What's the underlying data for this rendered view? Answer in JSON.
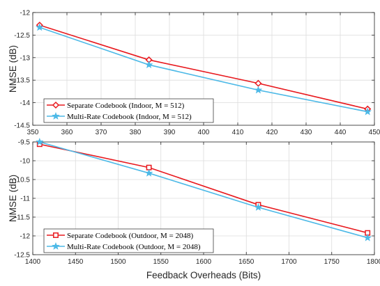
{
  "chart_data": [
    {
      "type": "line",
      "xlabel": "",
      "ylabel": "NMSE (dB)",
      "xlim": [
        350,
        450
      ],
      "ylim": [
        -14.5,
        -12
      ],
      "xticks": [
        350,
        360,
        370,
        380,
        390,
        400,
        410,
        420,
        430,
        440,
        450
      ],
      "yticks": [
        -12,
        -12.5,
        -13,
        -13.5,
        -14,
        -14.5
      ],
      "xtick_labels": [
        "350",
        "360",
        "370",
        "380",
        "390",
        "400",
        "410",
        "420",
        "430",
        "440",
        "450"
      ],
      "ytick_labels": [
        "-12",
        "-12.5",
        "-13",
        "-13.5",
        "-14",
        "-14.5"
      ],
      "grid": true,
      "legend_position": "bottom-left",
      "series": [
        {
          "name": "Separate Codebook (Indoor, M = 512)",
          "color": "#e8191e",
          "marker": "diamond",
          "x": [
            352,
            384,
            416,
            448
          ],
          "y": [
            -12.28,
            -13.05,
            -13.57,
            -14.14
          ]
        },
        {
          "name": "Multi-Rate Codebook (Indoor, M = 512)",
          "color": "#4cb9e7",
          "marker": "star",
          "x": [
            352,
            384,
            416,
            448
          ],
          "y": [
            -12.33,
            -13.16,
            -13.72,
            -14.2
          ]
        }
      ]
    },
    {
      "type": "line",
      "xlabel": "Feedback Overheads (Bits)",
      "ylabel": "NMSE (dB)",
      "xlim": [
        1400,
        1800
      ],
      "ylim": [
        -12.5,
        -9.5
      ],
      "xticks": [
        1400,
        1450,
        1500,
        1550,
        1600,
        1650,
        1700,
        1750,
        1800
      ],
      "yticks": [
        -9.5,
        -10,
        -10.5,
        -11,
        -11.5,
        -12,
        -12.5
      ],
      "xtick_labels": [
        "1400",
        "1450",
        "1500",
        "1550",
        "1600",
        "1650",
        "1700",
        "1750",
        "1800"
      ],
      "ytick_labels": [
        "-9.5",
        "-10",
        "-10.5",
        "-11",
        "-11.5",
        "-12",
        "-12.5"
      ],
      "grid": true,
      "legend_position": "bottom-left",
      "series": [
        {
          "name": "Separate Codebook (Outdoor, M = 2048)",
          "color": "#e8191e",
          "marker": "square",
          "x": [
            1408,
            1536,
            1664,
            1792
          ],
          "y": [
            -9.56,
            -10.18,
            -11.17,
            -11.92
          ]
        },
        {
          "name": "Multi-Rate Codebook (Outdoor, M = 2048)",
          "color": "#4cb9e7",
          "marker": "star",
          "x": [
            1408,
            1536,
            1664,
            1792
          ],
          "y": [
            -9.5,
            -10.33,
            -11.24,
            -12.05
          ]
        }
      ]
    }
  ]
}
